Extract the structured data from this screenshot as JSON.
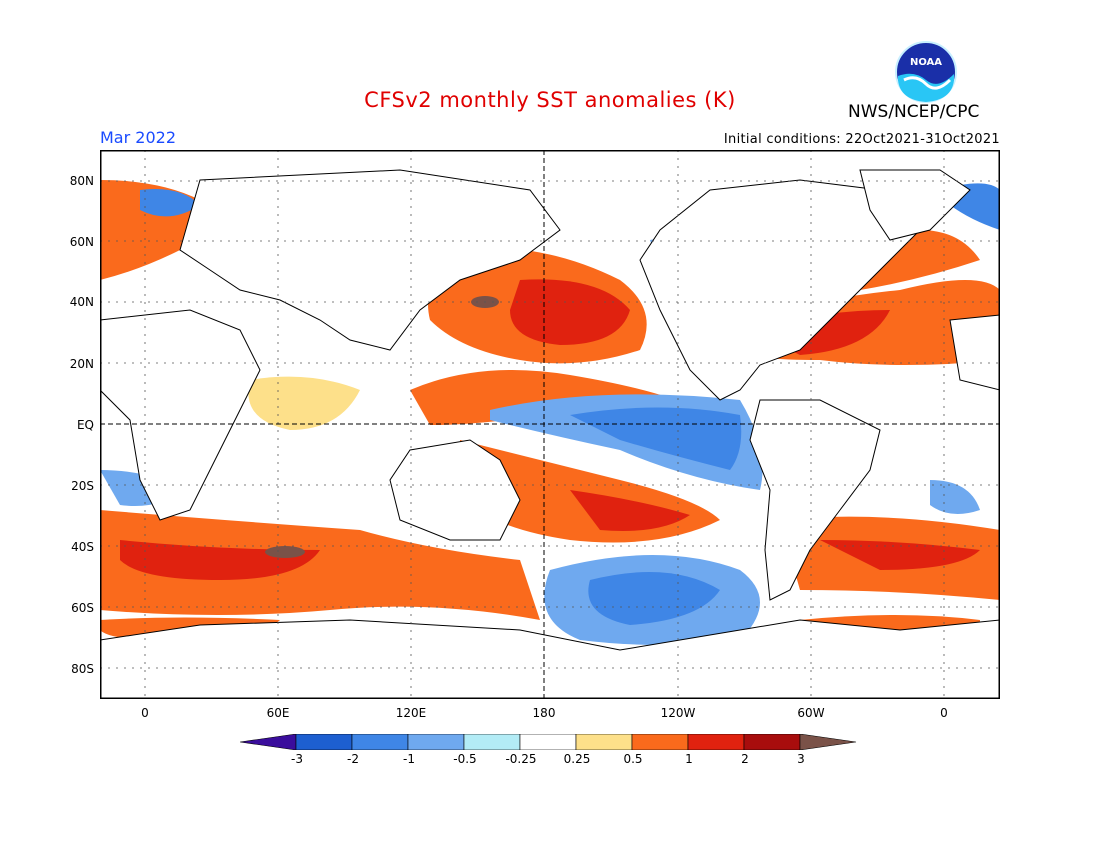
{
  "title": "CFSv2 monthly SST anomalies (K)",
  "agency": "NWS/NCEP/CPC",
  "logo_text": "NOAA",
  "valid_month": "Mar 2022",
  "initial_conditions": "Initial conditions: 22Oct2021-31Oct2021",
  "lat_labels": [
    "80N",
    "60N",
    "40N",
    "20N",
    "EQ",
    "20S",
    "40S",
    "60S",
    "80S"
  ],
  "lon_labels": [
    "0",
    "60E",
    "120E",
    "180",
    "120W",
    "60W",
    "0"
  ],
  "colorbar": {
    "labels": [
      "-3",
      "-2",
      "-1",
      "-0.5",
      "-0.25",
      "0.25",
      "0.5",
      "1",
      "2",
      "3"
    ],
    "colors": [
      "#3a0d9c",
      "#1d5fd0",
      "#3f86e6",
      "#6fa9ef",
      "#b3ecf6",
      "#ffffff",
      "#fde08a",
      "#fa6a1c",
      "#e0220f",
      "#a80d0d",
      "#7a5248"
    ]
  },
  "colors": {
    "title": "#e00000",
    "month": "#1a4bff",
    "land": "#ffffff",
    "coast": "#000000"
  }
}
